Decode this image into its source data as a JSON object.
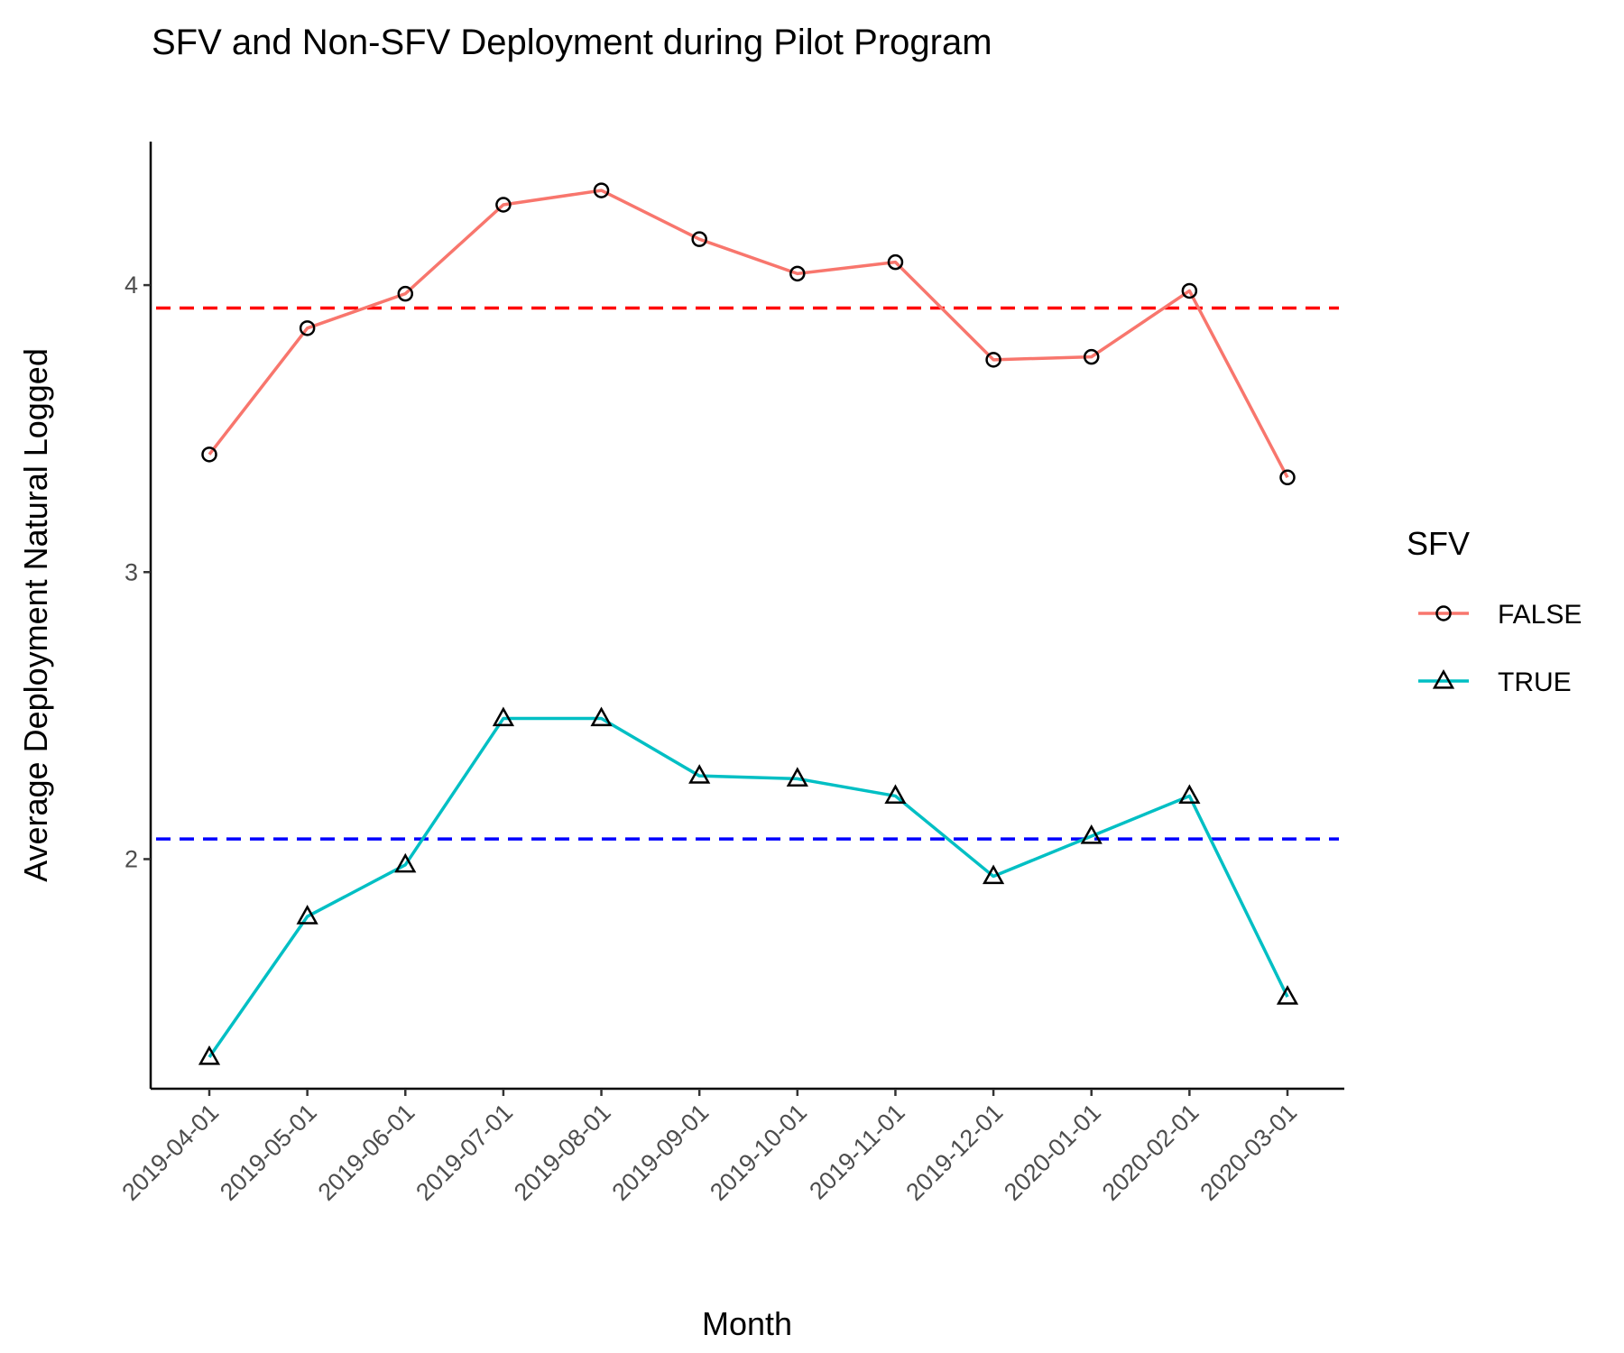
{
  "chart_data": {
    "type": "line",
    "title": "SFV and Non-SFV Deployment during Pilot Program",
    "xlabel": "Month",
    "ylabel": "Average Deployment Natural Logged",
    "categories": [
      "2019-04-01",
      "2019-05-01",
      "2019-06-01",
      "2019-07-01",
      "2019-08-01",
      "2019-09-01",
      "2019-10-01",
      "2019-11-01",
      "2019-12-01",
      "2020-01-01",
      "2020-02-01",
      "2020-03-01"
    ],
    "ylim": [
      1.2,
      4.5
    ],
    "yticks": [
      2,
      3,
      4
    ],
    "grid": false,
    "legend": {
      "title": "SFV",
      "position": "right"
    },
    "series": [
      {
        "name": "FALSE",
        "color": "#F8766D",
        "marker": "circle",
        "values": [
          3.41,
          3.85,
          3.97,
          4.28,
          4.33,
          4.16,
          4.04,
          4.08,
          3.74,
          3.75,
          3.98,
          3.33
        ]
      },
      {
        "name": "TRUE",
        "color": "#00BFC4",
        "marker": "triangle",
        "values": [
          1.31,
          1.8,
          1.98,
          2.49,
          2.49,
          2.29,
          2.28,
          2.22,
          1.94,
          2.08,
          2.22,
          1.52
        ]
      }
    ],
    "reference_lines": [
      {
        "value": 3.92,
        "color": "#FF0000",
        "style": "dashed"
      },
      {
        "value": 2.07,
        "color": "#0000FF",
        "style": "dashed"
      }
    ]
  }
}
